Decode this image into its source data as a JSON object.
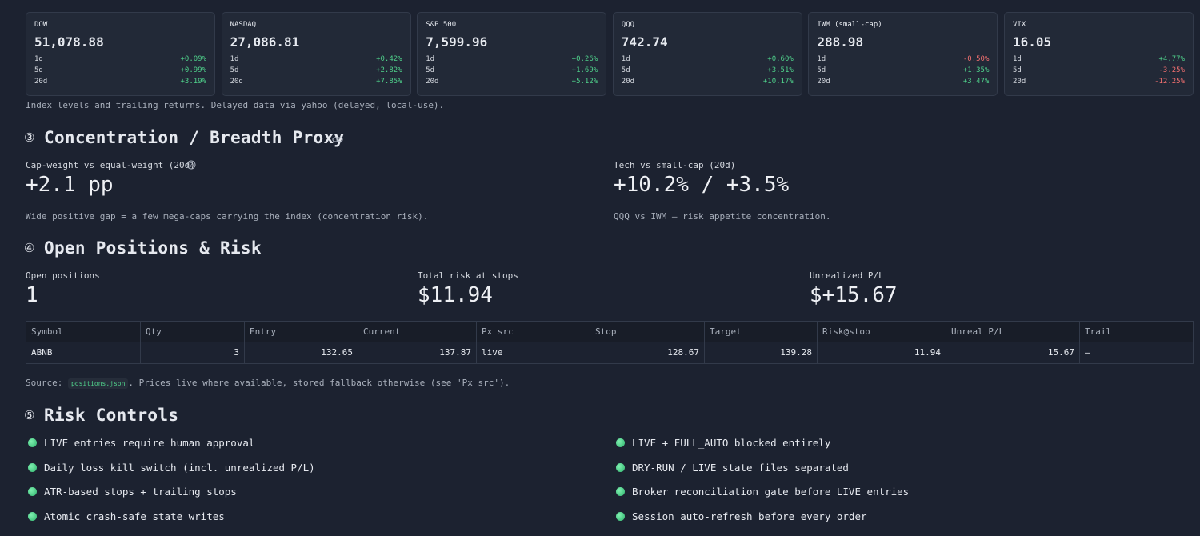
{
  "index_cards": [
    {
      "name": "DOW",
      "level": "51,078.88",
      "returns": [
        [
          "1d",
          "+0.09%"
        ],
        [
          "5d",
          "+0.99%"
        ],
        [
          "20d",
          "+3.19%"
        ]
      ]
    },
    {
      "name": "NASDAQ",
      "level": "27,086.81",
      "returns": [
        [
          "1d",
          "+0.42%"
        ],
        [
          "5d",
          "+2.82%"
        ],
        [
          "20d",
          "+7.85%"
        ]
      ]
    },
    {
      "name": "S&P 500",
      "level": "7,599.96",
      "returns": [
        [
          "1d",
          "+0.26%"
        ],
        [
          "5d",
          "+1.69%"
        ],
        [
          "20d",
          "+5.12%"
        ]
      ]
    },
    {
      "name": "QQQ",
      "level": "742.74",
      "returns": [
        [
          "1d",
          "+0.60%"
        ],
        [
          "5d",
          "+3.51%"
        ],
        [
          "20d",
          "+10.17%"
        ]
      ]
    },
    {
      "name": "IWM (small-cap)",
      "level": "288.98",
      "returns": [
        [
          "1d",
          "-0.50%"
        ],
        [
          "5d",
          "+1.35%"
        ],
        [
          "20d",
          "+3.47%"
        ]
      ]
    },
    {
      "name": "VIX",
      "level": "16.05",
      "returns": [
        [
          "1d",
          "+4.77%"
        ],
        [
          "5d",
          "-3.25%"
        ],
        [
          "20d",
          "-12.25%"
        ]
      ]
    }
  ],
  "index_note": "Index levels and trailing returns. Delayed data via yahoo (delayed, local-use).",
  "concentration": {
    "number": "③",
    "title": "Concentration / Breadth Proxy",
    "metrics": [
      {
        "label": "Cap-weight vs equal-weight (20d)",
        "value": "+2.1 pp",
        "note": "Wide positive gap = a few mega-caps carrying the index (concentration risk)."
      },
      {
        "label": "Tech vs small-cap (20d)",
        "value": "+10.2% / +3.5%",
        "note": "QQQ vs IWM — risk appetite concentration."
      }
    ]
  },
  "positions": {
    "number": "④",
    "title": "Open Positions & Risk",
    "metrics": [
      {
        "label": "Open positions",
        "value": "1"
      },
      {
        "label": "Total risk at stops",
        "value": "$11.94"
      },
      {
        "label": "Unrealized P/L",
        "value": "$+15.67"
      }
    ],
    "table": {
      "columns": [
        "Symbol",
        "Qty",
        "Entry",
        "Current",
        "Px src",
        "Stop",
        "Target",
        "Risk@stop",
        "Unreal P/L",
        "Trail"
      ],
      "rows": [
        [
          "ABNB",
          "3",
          "132.65",
          "137.87",
          "live",
          "128.67",
          "139.28",
          "11.94",
          "15.67",
          "—"
        ]
      ]
    },
    "source": {
      "prefix": "Source:",
      "file": "positions.json",
      "suffix": ". Prices live where available, stored fallback otherwise (see 'Px src')."
    }
  },
  "risk_controls": {
    "number": "⑤",
    "title": "Risk Controls",
    "items": [
      "LIVE entries require human approval",
      "Daily loss kill switch (incl. unrealized P/L)",
      "ATR-based stops + trailing stops",
      "Atomic crash-safe state writes",
      "LIVE + FULL_AUTO blocked entirely",
      "DRY-RUN / LIVE state files separated",
      "Broker reconciliation gate before LIVE entries",
      "Session auto-refresh before every order"
    ]
  }
}
